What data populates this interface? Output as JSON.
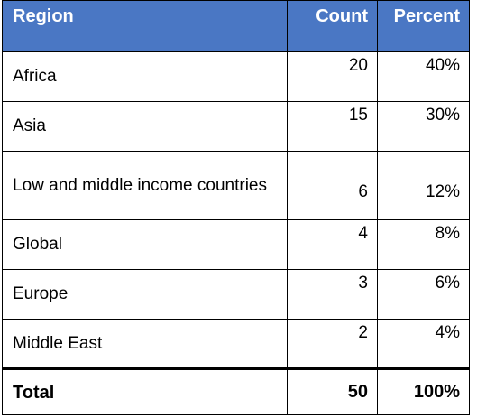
{
  "table": {
    "headers": {
      "region": "Region",
      "count": "Count",
      "percent": "Percent"
    },
    "rows": [
      {
        "region": "Africa",
        "count": "20",
        "percent": "40%"
      },
      {
        "region": "Asia",
        "count": "15",
        "percent": "30%"
      },
      {
        "region": "Low and middle income countries",
        "count": "6",
        "percent": "12%"
      },
      {
        "region": "Global",
        "count": "4",
        "percent": "8%"
      },
      {
        "region": "Europe",
        "count": "3",
        "percent": "6%"
      },
      {
        "region": "Middle East",
        "count": "2",
        "percent": "4%"
      }
    ],
    "total": {
      "region": "Total",
      "count": "50",
      "percent": "100%"
    }
  },
  "colors": {
    "header_bg": "#4a77c4",
    "header_text": "#ffffff",
    "border": "#000000"
  }
}
